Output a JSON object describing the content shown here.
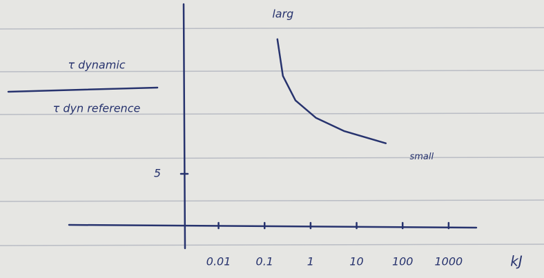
{
  "chart_data": {
    "type": "line",
    "ylabel": {
      "numerator": "τ dynamic",
      "denominator": "τ dyn reference"
    },
    "xlabel": "kJ",
    "x": [
      0.19,
      0.25,
      0.47,
      1.3,
      5.3,
      43
    ],
    "values": [
      18.2,
      14.6,
      12.2,
      10.5,
      9.2,
      8.0
    ],
    "color": "#27336e",
    "log_x": true,
    "xlim": [
      0.002,
      4000
    ],
    "xticks": [
      0.01,
      0.1,
      1,
      10,
      100,
      1000
    ],
    "ylim": [
      0,
      21.5
    ],
    "yticks": [
      5
    ],
    "annotations": [
      "larg",
      "small"
    ]
  }
}
